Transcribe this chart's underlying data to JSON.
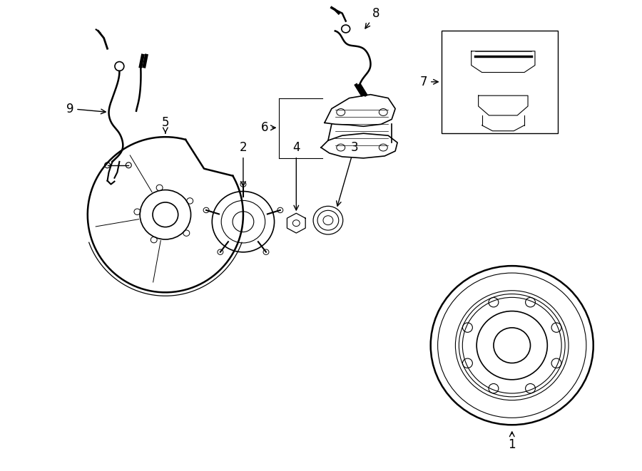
{
  "bg_color": "#ffffff",
  "line_color": "#000000",
  "label_color": "#000000",
  "figsize": [
    9.0,
    6.61
  ],
  "dpi": 100
}
